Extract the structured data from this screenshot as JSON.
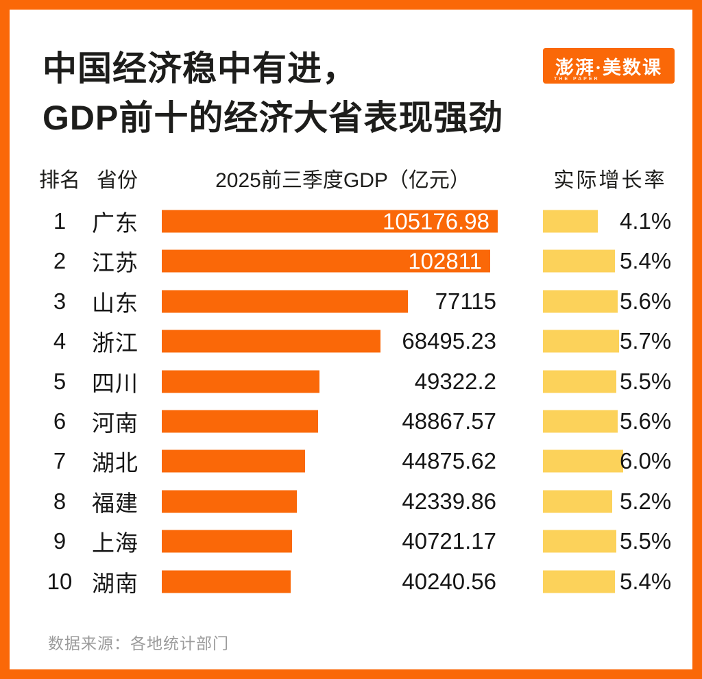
{
  "page": {
    "title_lines": [
      "中国经济稳中有进，",
      "GDP前十的经济大省表现强劲"
    ],
    "logo": {
      "main": "澎湃·美数课",
      "sub": "THE PAPER"
    },
    "source_note": "数据来源：各地统计部门",
    "colors": {
      "accent_orange": "#FA6808",
      "bar_yellow": "#FCD25A",
      "title_black": "#1D1D1B",
      "source_gray": "#9B9B9B"
    }
  },
  "table_headers": {
    "rank": "排名",
    "province": "省份",
    "gdp": "2025前三季度GDP（亿元）",
    "growth": "实际增长率"
  },
  "chart_data": {
    "type": "bar",
    "orientation": "horizontal",
    "title": "中国经济稳中有进，GDP前十的经济大省表现强劲",
    "unit": "亿元",
    "categories": [
      "广东",
      "江苏",
      "山东",
      "浙江",
      "四川",
      "河南",
      "湖北",
      "福建",
      "上海",
      "湖南"
    ],
    "series": [
      {
        "name": "2025前三季度GDP（亿元）",
        "values": [
          105176.98,
          102811,
          77115,
          68495.23,
          49322.2,
          48867.57,
          44875.62,
          42339.86,
          40721.17,
          40240.56
        ]
      },
      {
        "name": "实际增长率(%)",
        "values": [
          4.1,
          5.4,
          5.6,
          5.7,
          5.5,
          5.6,
          6.0,
          5.2,
          5.5,
          5.4
        ]
      }
    ],
    "gdp_axis_max": 105176.98,
    "growth_axis_max": 6.0,
    "grid": false,
    "legend": "none",
    "rows": [
      {
        "rank": "1",
        "province": "广东",
        "gdp": 105176.98,
        "gdp_label": "105176.98",
        "growth": 4.1,
        "growth_label": "4.1%"
      },
      {
        "rank": "2",
        "province": "江苏",
        "gdp": 102811,
        "gdp_label": "102811",
        "growth": 5.4,
        "growth_label": "5.4%"
      },
      {
        "rank": "3",
        "province": "山东",
        "gdp": 77115,
        "gdp_label": "77115",
        "growth": 5.6,
        "growth_label": "5.6%"
      },
      {
        "rank": "4",
        "province": "浙江",
        "gdp": 68495.23,
        "gdp_label": "68495.23",
        "growth": 5.7,
        "growth_label": "5.7%"
      },
      {
        "rank": "5",
        "province": "四川",
        "gdp": 49322.2,
        "gdp_label": "49322.2",
        "growth": 5.5,
        "growth_label": "5.5%"
      },
      {
        "rank": "6",
        "province": "河南",
        "gdp": 48867.57,
        "gdp_label": "48867.57",
        "growth": 5.6,
        "growth_label": "5.6%"
      },
      {
        "rank": "7",
        "province": "湖北",
        "gdp": 44875.62,
        "gdp_label": "44875.62",
        "growth": 6.0,
        "growth_label": "6.0%"
      },
      {
        "rank": "8",
        "province": "福建",
        "gdp": 42339.86,
        "gdp_label": "42339.86",
        "growth": 5.2,
        "growth_label": "5.2%"
      },
      {
        "rank": "9",
        "province": "上海",
        "gdp": 40721.17,
        "gdp_label": "40721.17",
        "growth": 5.5,
        "growth_label": "5.5%"
      },
      {
        "rank": "10",
        "province": "湖南",
        "gdp": 40240.56,
        "gdp_label": "40240.56",
        "growth": 5.4,
        "growth_label": "5.4%"
      }
    ]
  }
}
